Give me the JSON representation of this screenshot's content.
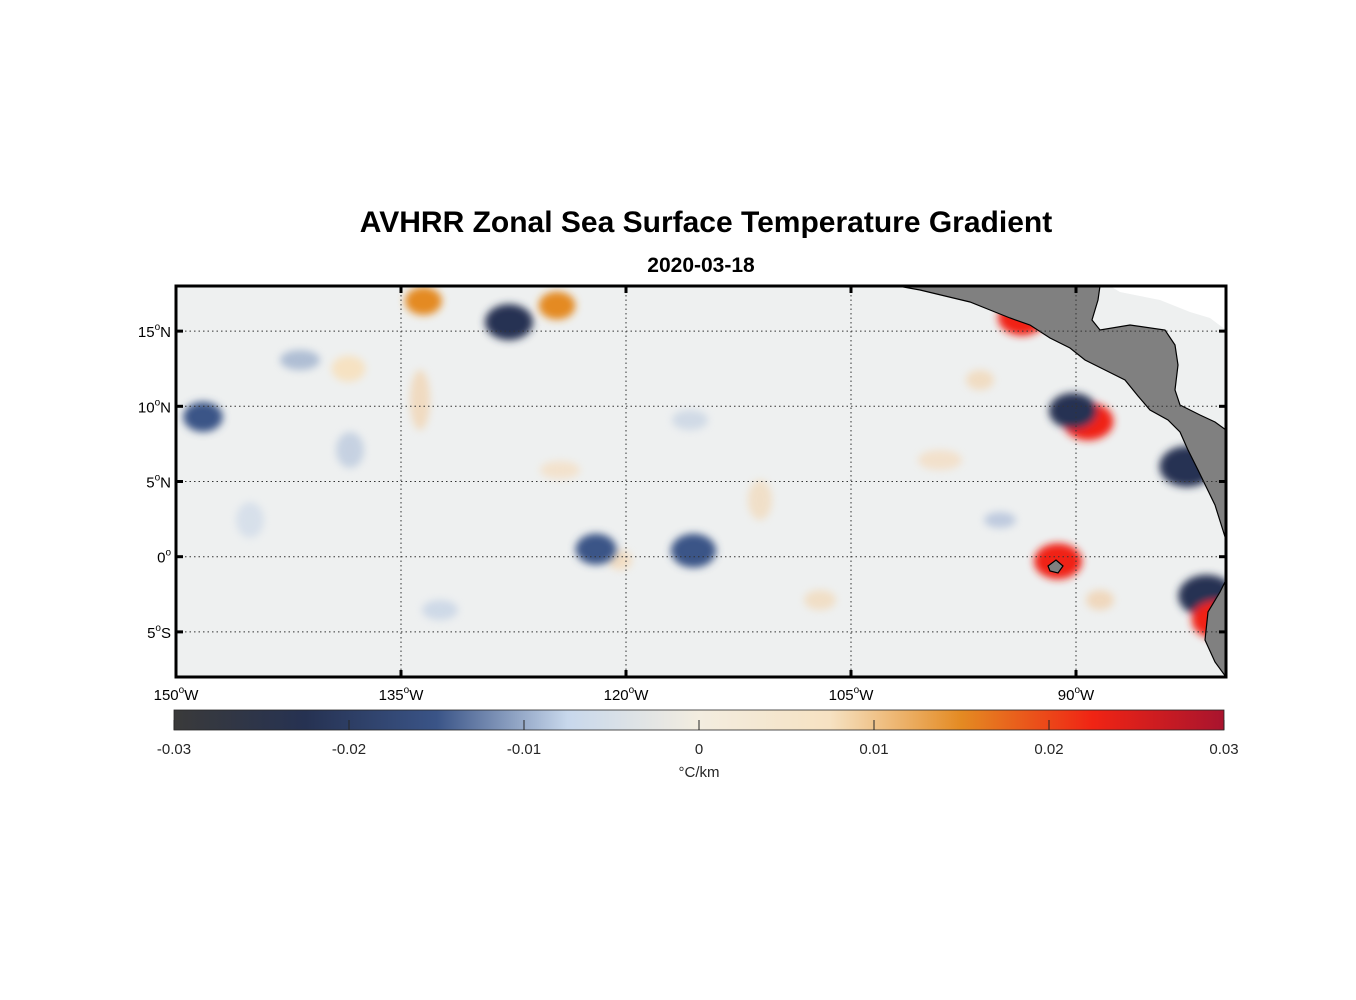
{
  "figure": {
    "title": "AVHRR Zonal Sea Surface Temperature Gradient",
    "subtitle": "2020-03-18"
  },
  "map": {
    "lon_range": [
      -150,
      -80
    ],
    "lat_range": [
      -8,
      18
    ],
    "lat_ticks": [
      {
        "value": 15,
        "label": "15",
        "hemi": "N"
      },
      {
        "value": 10,
        "label": "10",
        "hemi": "N"
      },
      {
        "value": 5,
        "label": "5",
        "hemi": "N"
      },
      {
        "value": 0,
        "label": "0",
        "hemi": ""
      },
      {
        "value": -5,
        "label": "5",
        "hemi": "S"
      }
    ],
    "lon_ticks": [
      {
        "value": -150,
        "label": "150",
        "hemi": "W"
      },
      {
        "value": -135,
        "label": "135",
        "hemi": "W"
      },
      {
        "value": -120,
        "label": "120",
        "hemi": "W"
      },
      {
        "value": -105,
        "label": "105",
        "hemi": "W"
      },
      {
        "value": -90,
        "label": "90",
        "hemi": "W"
      }
    ],
    "degree_symbol": "o",
    "land_color": "#808080",
    "grid_style": "dotted"
  },
  "colorbar": {
    "range": [
      -0.03,
      0.03
    ],
    "ticks": [
      "-0.03",
      "-0.02",
      "-0.01",
      "0",
      "0.01",
      "0.02",
      "0.03"
    ],
    "unit": "°C/km",
    "colors": [
      "#3a3a3a",
      "#263252",
      "#3a5487",
      "#c8d8ec",
      "#f3ede0",
      "#f6e2c2",
      "#e48a22",
      "#f02414",
      "#a8142e"
    ]
  },
  "features": [
    {
      "lon": -89.2,
      "lat": 9.0,
      "value": 0.022
    },
    {
      "lon": -90.2,
      "lat": 9.7,
      "value": -0.02
    },
    {
      "lon": -93.6,
      "lat": 15.9,
      "value": 0.02
    },
    {
      "lon": -82.6,
      "lat": 6.0,
      "value": -0.025
    },
    {
      "lon": -81.3,
      "lat": -2.6,
      "value": -0.026
    },
    {
      "lon": -80.6,
      "lat": -4.2,
      "value": 0.022
    },
    {
      "lon": -91.2,
      "lat": -0.3,
      "value": 0.02
    },
    {
      "lon": -124.6,
      "lat": 16.7,
      "value": 0.012
    },
    {
      "lon": -133.5,
      "lat": 17.0,
      "value": 0.012
    },
    {
      "lon": -127.8,
      "lat": 15.6,
      "value": -0.02
    },
    {
      "lon": -138.5,
      "lat": 12.5,
      "value": 0.01
    },
    {
      "lon": -115.5,
      "lat": 0.4,
      "value": -0.018
    },
    {
      "lon": -122.0,
      "lat": 0.5,
      "value": -0.015
    },
    {
      "lon": -148.2,
      "lat": 9.3,
      "value": -0.014
    }
  ]
}
